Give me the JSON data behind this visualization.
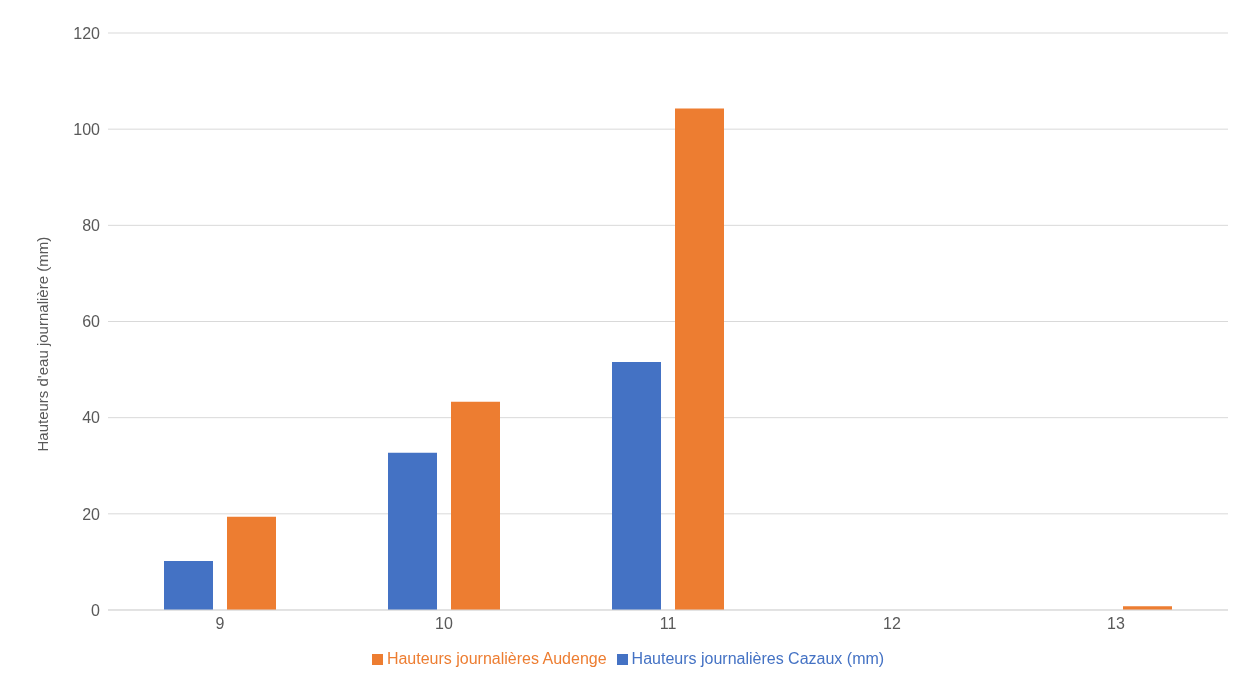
{
  "chart_data": {
    "type": "bar",
    "ylabel": "Hauteurs d'eau journalière (mm)",
    "categories": [
      "9",
      "10",
      "11",
      "12",
      "13"
    ],
    "series": [
      {
        "name": "Hauteurs journalières Cazaux (mm)",
        "color": "#4472c4",
        "values": [
          10.2,
          32.7,
          51.6,
          0,
          0
        ]
      },
      {
        "name": "Hauteurs journalières Audenge",
        "color": "#ed7d31",
        "values": [
          19.4,
          43.3,
          104.3,
          0,
          0.8
        ]
      }
    ],
    "ylim": [
      0,
      120
    ],
    "yticks": [
      0,
      20,
      40,
      60,
      80,
      100,
      120
    ],
    "grid": "y",
    "legend": "bottom"
  }
}
